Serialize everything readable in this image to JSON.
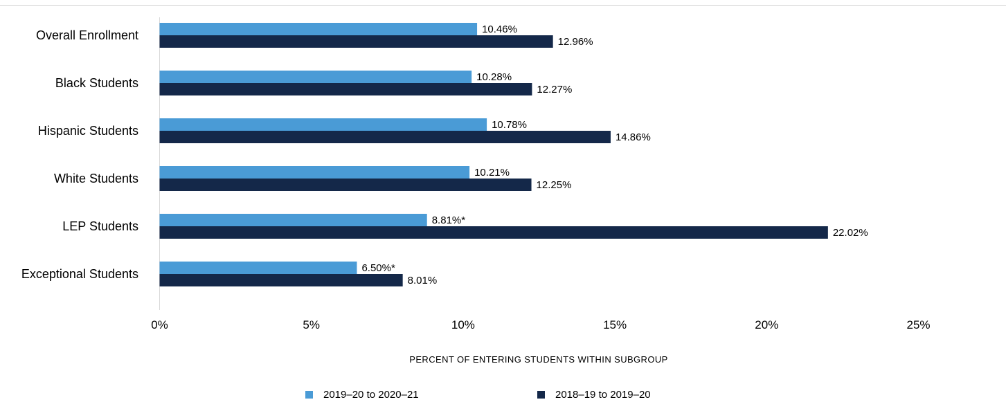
{
  "chart_data": {
    "type": "bar",
    "orientation": "horizontal",
    "categories": [
      "Overall Enrollment",
      "Black Students",
      "Hispanic Students",
      "White Students",
      "LEP Students",
      "Exceptional Students"
    ],
    "series": [
      {
        "name": "2019–20 to 2020–21",
        "color": "#4a9bd6",
        "values": [
          10.46,
          10.28,
          10.78,
          10.21,
          8.81,
          6.5
        ],
        "labels": [
          "10.46%",
          "10.28%",
          "10.78%",
          "10.21%",
          "8.81%*",
          "6.50%*"
        ]
      },
      {
        "name": "2018–19 to 2019–20",
        "color": "#142849",
        "values": [
          12.96,
          12.27,
          14.86,
          12.25,
          22.02,
          8.01
        ],
        "labels": [
          "12.96%",
          "12.27%",
          "14.86%",
          "12.25%",
          "22.02%",
          "8.01%"
        ]
      }
    ],
    "xlim": [
      0,
      25
    ],
    "xticks": [
      0,
      5,
      10,
      15,
      20,
      25
    ],
    "xtick_labels": [
      "0%",
      "5%",
      "10%",
      "15%",
      "20%",
      "25%"
    ],
    "xlabel": "PERCENT OF ENTERING STUDENTS WITHIN SUBGROUP",
    "ylabel": "",
    "title": "",
    "grid": false,
    "legend_position": "bottom"
  }
}
